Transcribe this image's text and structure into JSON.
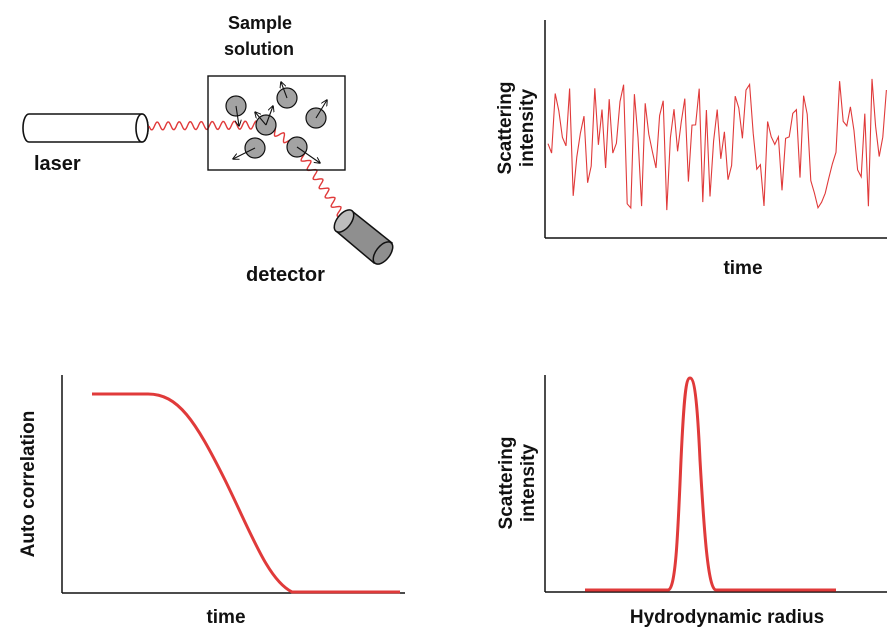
{
  "colors": {
    "signal": "#e03a3a",
    "particle": "#a3a3a3",
    "detector": "#8f8f8f",
    "ink": "#111111"
  },
  "setup": {
    "sample_label_line1": "Sample",
    "sample_label_line2": "solution",
    "laser_label": "laser",
    "detector_label": "detector"
  },
  "panels": {
    "intensity_time": {
      "ylabel_line1": "Scattering",
      "ylabel_line2": "intensity",
      "xlabel": "time"
    },
    "autocorrelation": {
      "ylabel": "Auto correlation",
      "xlabel": "time"
    },
    "size_distribution": {
      "ylabel_line1": "Scattering",
      "ylabel_line2": "intensity",
      "xlabel": "Hydrodynamic radius"
    }
  },
  "icons": [
    "laser-tube",
    "detector-cylinder",
    "particle-circle",
    "motion-arrow",
    "wavy-beam"
  ]
}
